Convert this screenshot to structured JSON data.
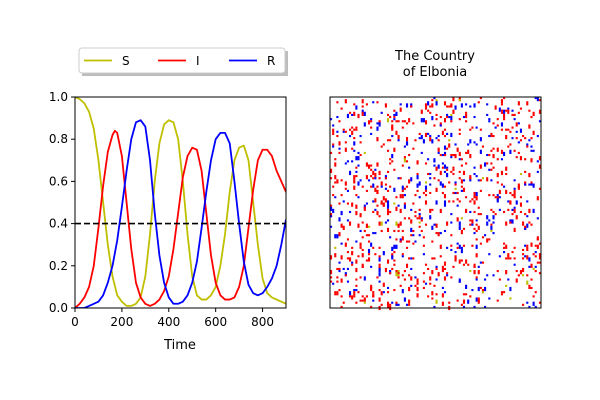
{
  "chart_data": [
    {
      "type": "line",
      "title": "",
      "xlabel": "Time",
      "ylabel": "",
      "xlim": [
        0,
        900
      ],
      "ylim": [
        0,
        1.0
      ],
      "xticks": [
        0,
        200,
        400,
        600,
        800
      ],
      "yticks": [
        0.0,
        0.2,
        0.4,
        0.6,
        0.8,
        1.0
      ],
      "xtick_labels": [
        "0",
        "200",
        "400",
        "600",
        "800"
      ],
      "ytick_labels": [
        "0.0",
        "0.2",
        "0.4",
        "0.6",
        "0.8",
        "1.0"
      ],
      "grid": false,
      "legend": {
        "placement": "above-top",
        "columns": 3
      },
      "threshold_line": {
        "y": 0.4,
        "style": "dashed",
        "color": "#000000"
      },
      "series": [
        {
          "name": "S",
          "color": "#bfbf00",
          "points": [
            [
              0,
              1.0
            ],
            [
              20,
              0.99
            ],
            [
              40,
              0.97
            ],
            [
              60,
              0.93
            ],
            [
              80,
              0.85
            ],
            [
              100,
              0.7
            ],
            [
              120,
              0.5
            ],
            [
              140,
              0.3
            ],
            [
              160,
              0.15
            ],
            [
              180,
              0.06
            ],
            [
              200,
              0.03
            ],
            [
              220,
              0.01
            ],
            [
              240,
              0.01
            ],
            [
              260,
              0.02
            ],
            [
              280,
              0.05
            ],
            [
              300,
              0.15
            ],
            [
              320,
              0.35
            ],
            [
              340,
              0.6
            ],
            [
              360,
              0.78
            ],
            [
              380,
              0.87
            ],
            [
              400,
              0.89
            ],
            [
              420,
              0.88
            ],
            [
              440,
              0.8
            ],
            [
              460,
              0.6
            ],
            [
              480,
              0.35
            ],
            [
              500,
              0.15
            ],
            [
              520,
              0.06
            ],
            [
              540,
              0.04
            ],
            [
              560,
              0.04
            ],
            [
              580,
              0.06
            ],
            [
              600,
              0.1
            ],
            [
              620,
              0.2
            ],
            [
              640,
              0.35
            ],
            [
              660,
              0.55
            ],
            [
              680,
              0.7
            ],
            [
              700,
              0.76
            ],
            [
              720,
              0.77
            ],
            [
              740,
              0.7
            ],
            [
              760,
              0.5
            ],
            [
              780,
              0.3
            ],
            [
              800,
              0.14
            ],
            [
              820,
              0.07
            ],
            [
              840,
              0.05
            ],
            [
              860,
              0.04
            ],
            [
              880,
              0.03
            ],
            [
              900,
              0.02
            ]
          ]
        },
        {
          "name": "I",
          "color": "#ff0000",
          "points": [
            [
              0,
              0.0
            ],
            [
              20,
              0.02
            ],
            [
              40,
              0.05
            ],
            [
              60,
              0.1
            ],
            [
              80,
              0.2
            ],
            [
              100,
              0.38
            ],
            [
              120,
              0.58
            ],
            [
              140,
              0.74
            ],
            [
              160,
              0.82
            ],
            [
              170,
              0.84
            ],
            [
              180,
              0.83
            ],
            [
              200,
              0.72
            ],
            [
              220,
              0.5
            ],
            [
              240,
              0.28
            ],
            [
              260,
              0.12
            ],
            [
              280,
              0.05
            ],
            [
              300,
              0.02
            ],
            [
              320,
              0.01
            ],
            [
              340,
              0.02
            ],
            [
              360,
              0.04
            ],
            [
              380,
              0.08
            ],
            [
              400,
              0.15
            ],
            [
              420,
              0.28
            ],
            [
              440,
              0.45
            ],
            [
              460,
              0.62
            ],
            [
              480,
              0.72
            ],
            [
              500,
              0.76
            ],
            [
              520,
              0.75
            ],
            [
              540,
              0.65
            ],
            [
              560,
              0.45
            ],
            [
              580,
              0.25
            ],
            [
              600,
              0.12
            ],
            [
              620,
              0.06
            ],
            [
              640,
              0.04
            ],
            [
              660,
              0.04
            ],
            [
              680,
              0.05
            ],
            [
              700,
              0.1
            ],
            [
              720,
              0.2
            ],
            [
              740,
              0.38
            ],
            [
              760,
              0.56
            ],
            [
              780,
              0.7
            ],
            [
              800,
              0.75
            ],
            [
              820,
              0.75
            ],
            [
              840,
              0.72
            ],
            [
              860,
              0.65
            ],
            [
              880,
              0.6
            ],
            [
              900,
              0.55
            ]
          ]
        },
        {
          "name": "R",
          "color": "#0000ff",
          "points": [
            [
              0,
              0.0
            ],
            [
              20,
              0.0
            ],
            [
              40,
              0.0
            ],
            [
              60,
              0.01
            ],
            [
              80,
              0.02
            ],
            [
              100,
              0.03
            ],
            [
              120,
              0.06
            ],
            [
              140,
              0.12
            ],
            [
              160,
              0.2
            ],
            [
              180,
              0.32
            ],
            [
              200,
              0.48
            ],
            [
              220,
              0.65
            ],
            [
              240,
              0.8
            ],
            [
              260,
              0.88
            ],
            [
              280,
              0.89
            ],
            [
              300,
              0.86
            ],
            [
              320,
              0.7
            ],
            [
              340,
              0.45
            ],
            [
              360,
              0.25
            ],
            [
              380,
              0.12
            ],
            [
              400,
              0.05
            ],
            [
              420,
              0.02
            ],
            [
              440,
              0.02
            ],
            [
              460,
              0.03
            ],
            [
              480,
              0.06
            ],
            [
              500,
              0.12
            ],
            [
              520,
              0.22
            ],
            [
              540,
              0.38
            ],
            [
              560,
              0.55
            ],
            [
              580,
              0.7
            ],
            [
              600,
              0.8
            ],
            [
              620,
              0.83
            ],
            [
              640,
              0.83
            ],
            [
              660,
              0.78
            ],
            [
              680,
              0.6
            ],
            [
              700,
              0.4
            ],
            [
              720,
              0.22
            ],
            [
              740,
              0.11
            ],
            [
              760,
              0.07
            ],
            [
              780,
              0.06
            ],
            [
              800,
              0.07
            ],
            [
              820,
              0.1
            ],
            [
              840,
              0.14
            ],
            [
              860,
              0.2
            ],
            [
              880,
              0.3
            ],
            [
              900,
              0.42
            ]
          ]
        }
      ]
    },
    {
      "type": "heatmap",
      "title": "The Country\nof Elbonia",
      "grid_size": 100,
      "background": "#ffffff",
      "axes_ticks": false,
      "state_colors": {
        "S": "#ffffff",
        "I": "#ff0000",
        "R": "#0000ff",
        "other": "#bfbf00"
      },
      "approx_fraction": {
        "I": 0.06,
        "R": 0.035,
        "other": 0.004
      }
    }
  ]
}
